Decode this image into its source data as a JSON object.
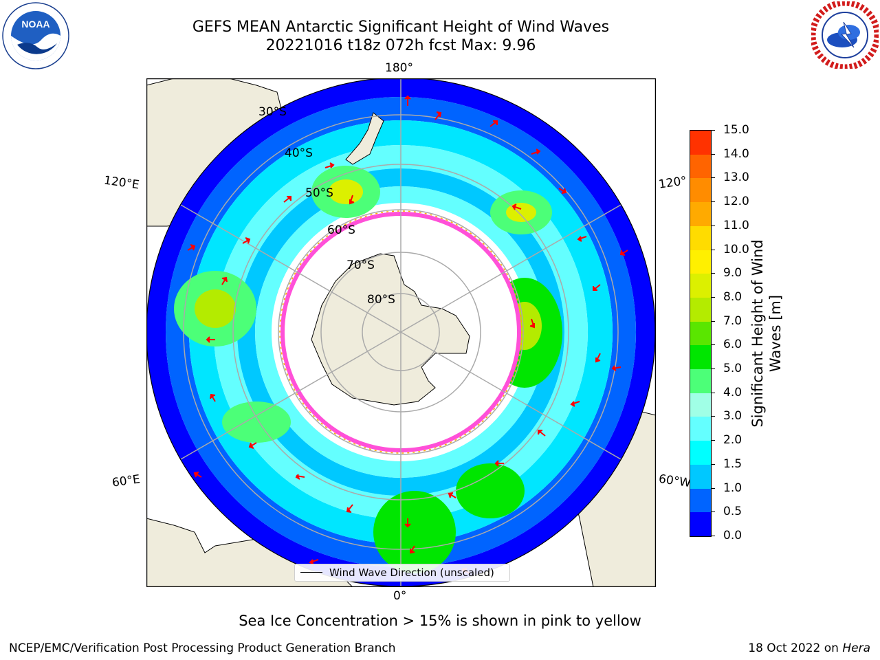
{
  "header": {
    "title_line1": "GEFS MEAN Antarctic Significant Height of Wind Waves",
    "title_line2": "20221016 t18z 072h fcst   Max: 9.96"
  },
  "logos": {
    "noaa": {
      "text": "NOAA",
      "ring_text": "NATIONAL OCEANIC AND ATMOSPHERIC ADMINISTRATION · U.S. DEPARTMENT OF COMMERCE"
    },
    "nws": {
      "ring_text": "NATIONAL WEATHER SERVICE"
    }
  },
  "map": {
    "projection": "south-polar-stereographic",
    "longitude_labels": {
      "top": "180°",
      "bottom": "0°",
      "left_upper": "120°E",
      "left_lower": "60°E",
      "right_upper": "120°",
      "right_lower": "60°W"
    },
    "latitude_labels": [
      "30°S",
      "40°S",
      "50°S",
      "60°S",
      "70°S",
      "80°S"
    ],
    "legend_label": "Wind Wave Direction (unscaled)"
  },
  "colorbar": {
    "label": "Significant Height of Wind Waves [m]",
    "ticks": [
      "0.0",
      "0.5",
      "1.0",
      "1.5",
      "2.0",
      "3.0",
      "4.0",
      "5.0",
      "6.0",
      "7.0",
      "8.0",
      "9.0",
      "10.0",
      "11.0",
      "12.0",
      "13.0",
      "14.0",
      "15.0"
    ],
    "colors": [
      "#0000ff",
      "#0064ff",
      "#00c8ff",
      "#00ffff",
      "#64ffff",
      "#a0ffe6",
      "#4cff78",
      "#00e600",
      "#5ae600",
      "#b4eb00",
      "#dcf000",
      "#fff000",
      "#ffdc00",
      "#ffaa00",
      "#ff8c00",
      "#ff6400",
      "#ff3200",
      "#ff0000"
    ]
  },
  "footer": {
    "note": "Sea Ice Concentration > 15% is shown in pink to yellow",
    "left": "NCEP/EMC/Verification Post Processing Product Generation Branch",
    "right_prefix": "18 Oct 2022 on ",
    "right_host": "Hera"
  }
}
